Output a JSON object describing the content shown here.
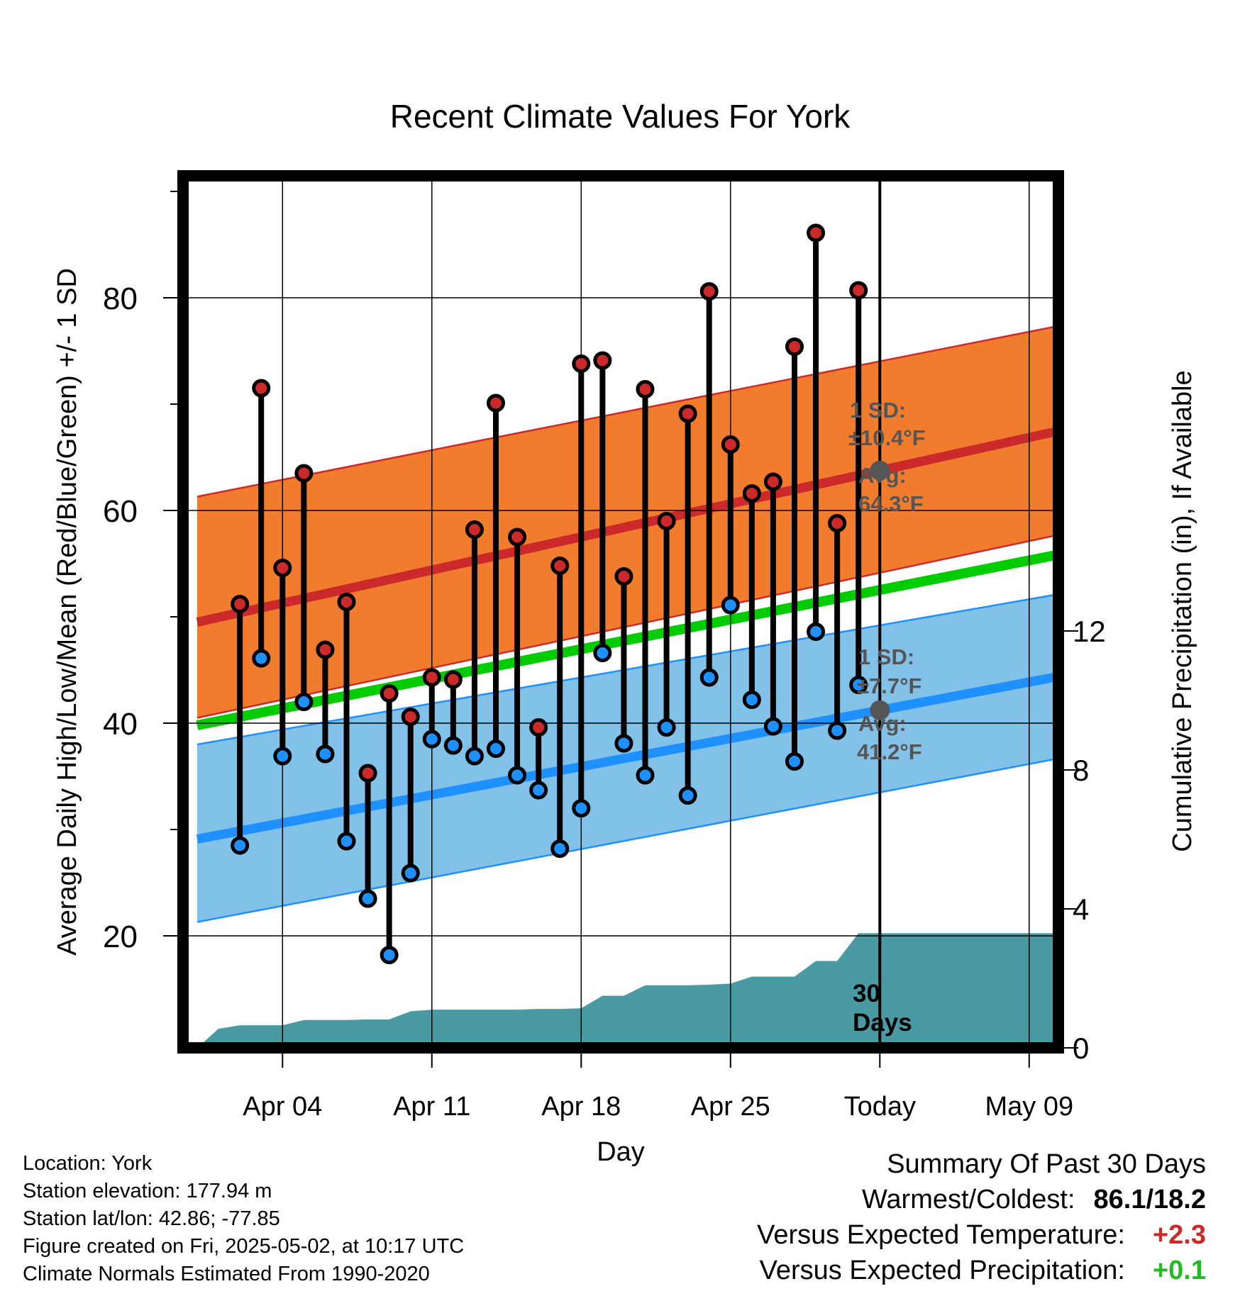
{
  "chart_data": {
    "type": "climate-range",
    "title": "Recent Climate Values For York",
    "xlabel": "Day",
    "ylabel": "Average Daily High/Low/Mean (Red/Blue/Green) +/- 1 SD",
    "y2label": "Cumulative Precipitation (in), If Available",
    "ylim": [
      10,
      91
    ],
    "y2lim": [
      0,
      18.75
    ],
    "yticks": [
      "20",
      "40",
      "60",
      "80"
    ],
    "y2ticks": [
      "0",
      "4",
      "8",
      "12"
    ],
    "xlim": [
      "2025-03-31",
      "2025-05-12"
    ],
    "xticks": [
      {
        "date": "2025-04-04",
        "label": "Apr 04"
      },
      {
        "date": "2025-04-11",
        "label": "Apr 11"
      },
      {
        "date": "2025-04-18",
        "label": "Apr 18"
      },
      {
        "date": "2025-04-25",
        "label": "Apr 25"
      },
      {
        "date": "2025-05-02",
        "label": "Today"
      },
      {
        "date": "2025-05-09",
        "label": "May 09"
      }
    ],
    "today": "2025-05-02",
    "period_label": [
      "30",
      "Days"
    ],
    "grid": true,
    "normals": {
      "dates": [
        "2025-03-31",
        "2025-05-12"
      ],
      "high_avg": [
        49.5,
        68.2
      ],
      "high_minus_sd": [
        40.5,
        58.4
      ],
      "high_plus_sd": [
        61.3,
        78.0
      ],
      "low_avg": [
        29.1,
        45.0
      ],
      "low_minus_sd": [
        21.3,
        37.3
      ],
      "low_plus_sd": [
        38.0,
        52.7
      ],
      "mean_avg": [
        39.8,
        56.5
      ]
    },
    "series": [
      {
        "name": "High",
        "color": "#cc2a2a",
        "values": [
          51.2,
          71.5,
          54.6,
          63.5,
          46.9,
          51.4,
          35.3,
          42.8,
          40.6,
          44.3,
          44.1,
          58.2,
          70.1,
          57.5,
          39.6,
          54.8,
          73.8,
          74.1,
          53.8,
          71.4,
          59.0,
          69.1,
          80.6,
          66.2,
          61.6,
          62.7,
          75.4,
          86.1,
          58.8,
          80.7
        ]
      },
      {
        "name": "Low",
        "color": "#1e90ff",
        "values": [
          28.5,
          46.1,
          36.9,
          42.0,
          37.1,
          28.9,
          23.5,
          18.2,
          25.9,
          38.5,
          37.9,
          36.9,
          37.6,
          35.1,
          33.7,
          28.2,
          32.0,
          46.6,
          38.1,
          35.1,
          39.6,
          33.2,
          44.3,
          51.1,
          42.2,
          39.7,
          36.4,
          48.6,
          39.3,
          43.6
        ]
      }
    ],
    "dates_start": "2025-04-02",
    "precipitation": {
      "dates": [
        "2025-03-31",
        "2025-04-01",
        "2025-04-02",
        "2025-04-03",
        "2025-04-04",
        "2025-04-05",
        "2025-04-06",
        "2025-04-07",
        "2025-04-08",
        "2025-04-09",
        "2025-04-10",
        "2025-04-11",
        "2025-04-12",
        "2025-04-13",
        "2025-04-14",
        "2025-04-15",
        "2025-04-16",
        "2025-04-17",
        "2025-04-18",
        "2025-04-19",
        "2025-04-20",
        "2025-04-21",
        "2025-04-22",
        "2025-04-23",
        "2025-04-24",
        "2025-04-25",
        "2025-04-26",
        "2025-04-27",
        "2025-04-28",
        "2025-04-29",
        "2025-04-30",
        "2025-05-01",
        "2025-05-02",
        "2025-05-12"
      ],
      "values": [
        0.0,
        0.55,
        0.65,
        0.65,
        0.65,
        0.8,
        0.8,
        0.8,
        0.82,
        0.82,
        1.05,
        1.1,
        1.1,
        1.1,
        1.1,
        1.1,
        1.12,
        1.12,
        1.14,
        1.5,
        1.5,
        1.8,
        1.8,
        1.8,
        1.82,
        1.85,
        2.05,
        2.05,
        2.05,
        2.5,
        2.5,
        3.3,
        3.3,
        3.3
      ]
    },
    "annotations": {
      "high": {
        "sd_title": "1 SD:",
        "sd_value": "±10.4°F",
        "avg_title": "Avg:",
        "avg_value": "64.3°F"
      },
      "low": {
        "sd_title": "1 SD:",
        "sd_value": "±7.7°F",
        "avg_title": "Avg:",
        "avg_value": "41.2°F"
      }
    },
    "colors": {
      "high_band": "#f27c2e",
      "high_line": "#cc2a2a",
      "low_band": "#83c2e8",
      "low_line": "#1e90ff",
      "mean_line": "#00cc00",
      "precip": "#4a9aa3",
      "annotation": "#555555"
    }
  },
  "footer": {
    "location": "Location: York",
    "elevation": "Station elevation: 177.94 m",
    "latlon": "Station lat/lon: 42.86; -77.85",
    "created": "Figure created on Fri, 2025-05-02, at 10:17 UTC",
    "normals": "Climate Normals Estimated From 1990-2020"
  },
  "summary": {
    "title": "Summary Of Past 30 Days",
    "warmest_label": "Warmest/Coldest:",
    "warmest_value": "86.1/18.2",
    "temp_label": "Versus Expected Temperature:",
    "temp_value": "+2.3",
    "temp_color": "#cc2a2a",
    "precip_label": "Versus Expected Precipitation:",
    "precip_value": "+0.1",
    "precip_color": "#22bb22"
  }
}
